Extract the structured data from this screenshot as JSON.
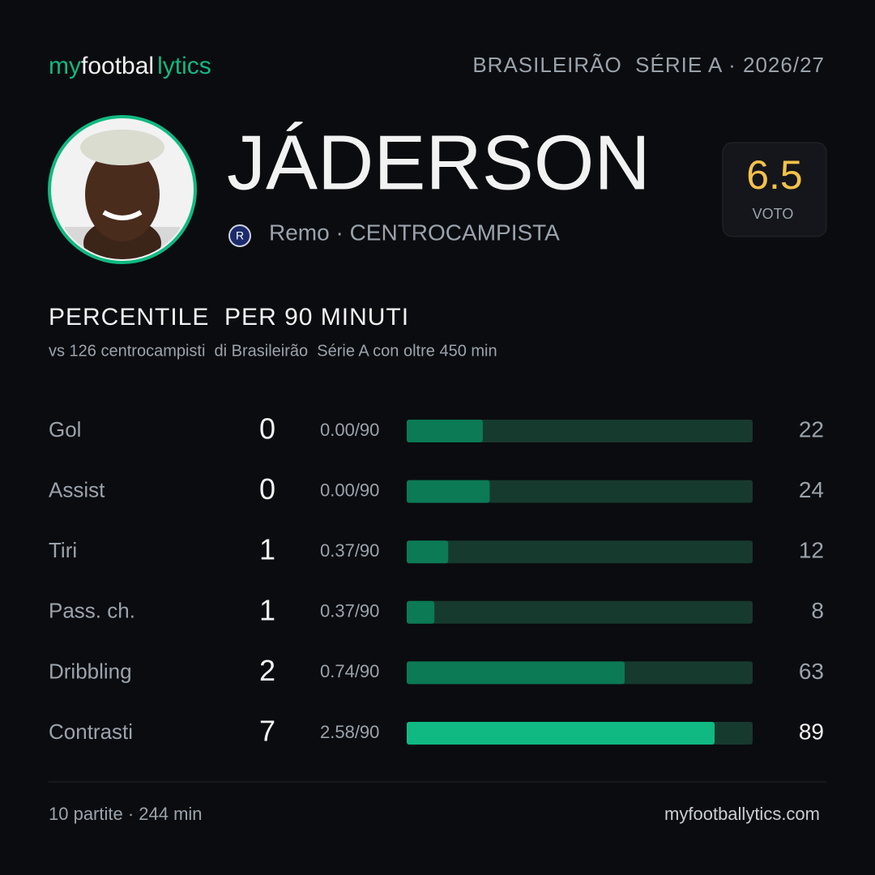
{
  "header": {
    "brand": [
      "my",
      "footbal",
      "lytics"
    ],
    "league": "BRASILEIRÃO  SÉRIE A · 2026/27"
  },
  "player": {
    "name": "JÁDERSON",
    "club_role": "Remo · CENTROCAMPISTA",
    "rating": "6.5",
    "rating_label": "VOTO"
  },
  "section": {
    "title": "PERCENTILE  PER 90 MINUTI",
    "subtitle": "vs 126 centrocampisti  di Brasileirão  Série A con oltre 450 min"
  },
  "stats": {
    "xlim": [
      0,
      100
    ],
    "track_color": "#173a2e",
    "rows": [
      {
        "label": "Gol",
        "total": 0,
        "per90": "0.00/90",
        "percentile": 22,
        "color": "#0b7a55"
      },
      {
        "label": "Assist",
        "total": 0,
        "per90": "0.00/90",
        "percentile": 24,
        "color": "#0b7a55"
      },
      {
        "label": "Tiri",
        "total": 1,
        "per90": "0.37/90",
        "percentile": 12,
        "color": "#0b7a55"
      },
      {
        "label": "Pass. ch.",
        "total": 1,
        "per90": "0.37/90",
        "percentile": 8,
        "color": "#0b7a55"
      },
      {
        "label": "Dribbling",
        "total": 2,
        "per90": "0.74/90",
        "percentile": 63,
        "color": "#0b7a55"
      },
      {
        "label": "Contrasti",
        "total": 7,
        "per90": "2.58/90",
        "percentile": 89,
        "color": "#10b981"
      }
    ]
  },
  "footer": {
    "left": "10 partite · 244 min",
    "right": "myfootballytics.com"
  }
}
